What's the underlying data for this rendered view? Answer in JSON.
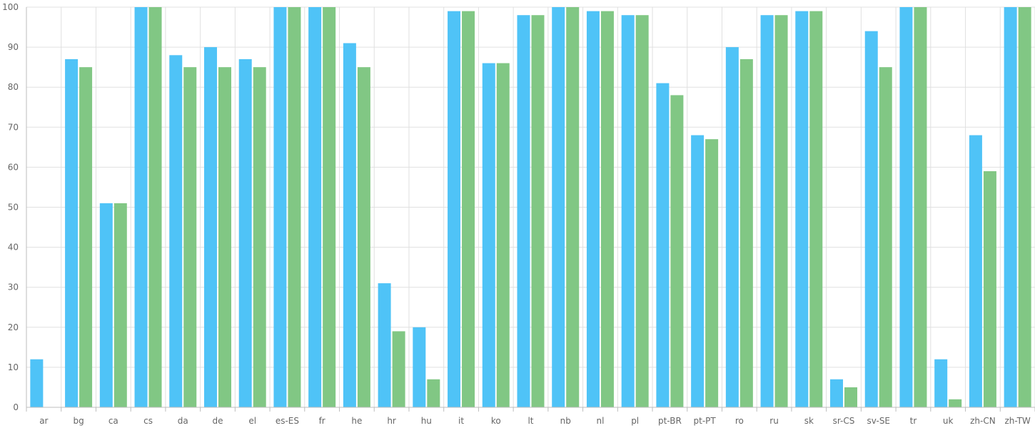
{
  "chart_data": {
    "type": "bar",
    "title": "",
    "xlabel": "",
    "ylabel": "",
    "ylim": [
      0,
      100
    ],
    "yticks": [
      0,
      10,
      20,
      30,
      40,
      50,
      60,
      70,
      80,
      90,
      100
    ],
    "grid": true,
    "legend": "none",
    "categories": [
      "ar",
      "bg",
      "ca",
      "cs",
      "da",
      "de",
      "el",
      "es-ES",
      "fr",
      "he",
      "hr",
      "hu",
      "it",
      "ko",
      "lt",
      "nb",
      "nl",
      "pl",
      "pt-BR",
      "pt-PT",
      "ro",
      "ru",
      "sk",
      "sr-CS",
      "sv-SE",
      "tr",
      "uk",
      "zh-CN",
      "zh-TW"
    ],
    "series": [
      {
        "color": "#4fc3f7",
        "values": [
          12,
          87,
          51,
          100,
          88,
          90,
          87,
          100,
          100,
          91,
          31,
          20,
          99,
          86,
          98,
          100,
          99,
          98,
          81,
          68,
          90,
          98,
          99,
          7,
          94,
          100,
          12,
          68,
          100
        ]
      },
      {
        "color": "#81c784",
        "values": [
          0,
          85,
          51,
          100,
          85,
          85,
          85,
          100,
          100,
          85,
          19,
          7,
          99,
          86,
          98,
          100,
          99,
          98,
          78,
          67,
          87,
          98,
          99,
          5,
          85,
          100,
          2,
          59,
          100
        ]
      }
    ],
    "colors": {
      "grid": "#e0e0e0",
      "axis": "#bdbdbd",
      "tick_text": "#666666"
    }
  }
}
